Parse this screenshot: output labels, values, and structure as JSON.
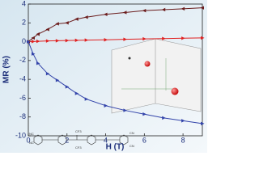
{
  "chart_data": {
    "type": "line",
    "xlabel": "H (T)",
    "ylabel": "MR (%)",
    "x": [
      0,
      0.25,
      0.5,
      1,
      1.5,
      2,
      2.5,
      3,
      4,
      5,
      6,
      7,
      8,
      9
    ],
    "series": [
      {
        "color": "#6b1c1c",
        "marker": "left",
        "values": [
          0,
          0.4,
          0.8,
          1.3,
          1.9,
          2.0,
          2.4,
          2.6,
          2.9,
          3.1,
          3.3,
          3.4,
          3.5,
          3.6
        ]
      },
      {
        "color": "#e02020",
        "marker": "right",
        "values": [
          0,
          0.02,
          0.04,
          0.08,
          0.1,
          0.12,
          0.15,
          0.17,
          0.2,
          0.25,
          0.3,
          0.33,
          0.37,
          0.4
        ]
      },
      {
        "color": "#3344aa",
        "marker": "right",
        "values": [
          0,
          -1.3,
          -2.3,
          -3.4,
          -4.1,
          -4.8,
          -5.5,
          -6.1,
          -6.8,
          -7.3,
          -7.7,
          -8.1,
          -8.4,
          -8.7
        ]
      }
    ],
    "xlim": [
      0,
      9
    ],
    "xticks": [
      0,
      2,
      4,
      6,
      8
    ],
    "ylim": [
      -10,
      4
    ],
    "yticks": [
      -10,
      -8,
      -6,
      -4,
      -2,
      0,
      2,
      4
    ],
    "annotations": [
      "NC",
      "NC",
      "CF3",
      "CF3",
      "CN",
      "CN"
    ]
  }
}
